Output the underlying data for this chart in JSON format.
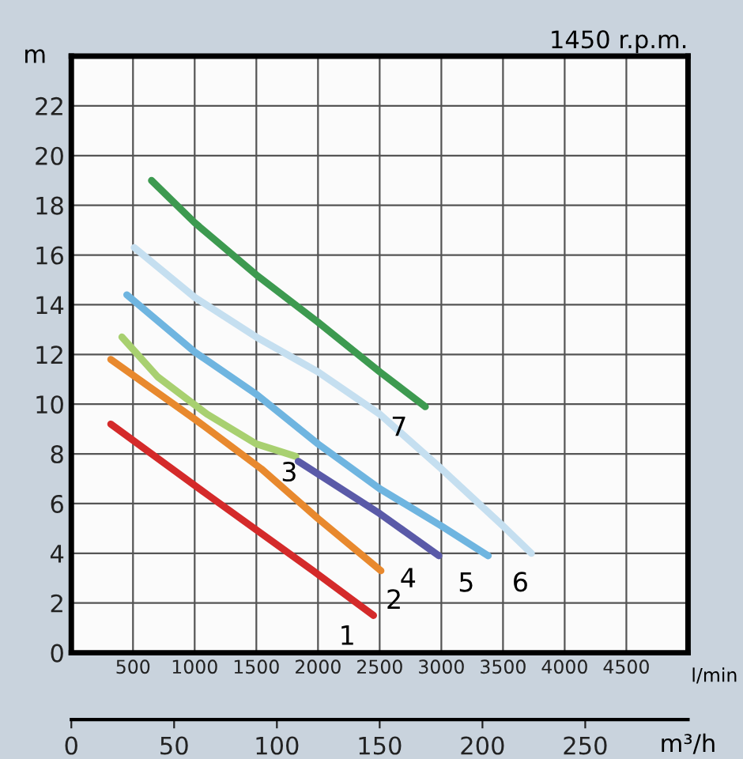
{
  "chart_data": {
    "type": "line",
    "xlabel": "l/min",
    "ylabel": "m",
    "x2label": "m³/h",
    "xlim": [
      0,
      5000
    ],
    "xticks": [
      500,
      1000,
      1500,
      2000,
      2500,
      3000,
      3500,
      4000,
      4500
    ],
    "ylim": [
      0,
      24
    ],
    "yticks": [
      0,
      2,
      4,
      6,
      8,
      10,
      12,
      14,
      16,
      18,
      20,
      22
    ],
    "x2lim": [
      0,
      300
    ],
    "x2ticks": [
      0,
      50,
      100,
      150,
      200,
      250
    ],
    "grid": true,
    "marker": "none",
    "line_style": "solid",
    "series": [
      {
        "name": "1",
        "color": "#d42a2a",
        "x": [
          320,
          1120,
          1960,
          2450
        ],
        "values": [
          9.2,
          6.3,
          3.3,
          1.5
        ]
      },
      {
        "name": "2",
        "color": "#e8892e",
        "x": [
          320,
          1000,
          1540,
          2000,
          2510
        ],
        "values": [
          11.8,
          9.4,
          7.4,
          5.4,
          3.3
        ]
      },
      {
        "name": "3",
        "color": "#a8d070",
        "x": [
          410,
          700,
          1100,
          1500,
          1820
        ],
        "values": [
          12.7,
          11.1,
          9.6,
          8.4,
          7.9
        ]
      },
      {
        "name": "4",
        "color": "#5a5aa8",
        "x": [
          1840,
          2500,
          2980
        ],
        "values": [
          7.7,
          5.6,
          3.9
        ]
      },
      {
        "name": "5",
        "color": "#6fb5e0",
        "x": [
          450,
          1000,
          1500,
          2000,
          2500,
          3000,
          3380
        ],
        "values": [
          14.4,
          12.1,
          10.4,
          8.4,
          6.6,
          5.1,
          3.9
        ]
      },
      {
        "name": "6",
        "color": "#c5dff0",
        "x": [
          510,
          1000,
          1500,
          2000,
          2500,
          3000,
          3500,
          3730
        ],
        "values": [
          16.3,
          14.3,
          12.7,
          11.3,
          9.6,
          7.4,
          5.1,
          4.0
        ]
      },
      {
        "name": "7",
        "color": "#3d9a50",
        "x": [
          650,
          1000,
          1500,
          2000,
          2500,
          2870
        ],
        "values": [
          19.0,
          17.3,
          15.2,
          13.3,
          11.3,
          9.9
        ]
      }
    ],
    "annotations": [
      "1450 r.p.m."
    ]
  }
}
